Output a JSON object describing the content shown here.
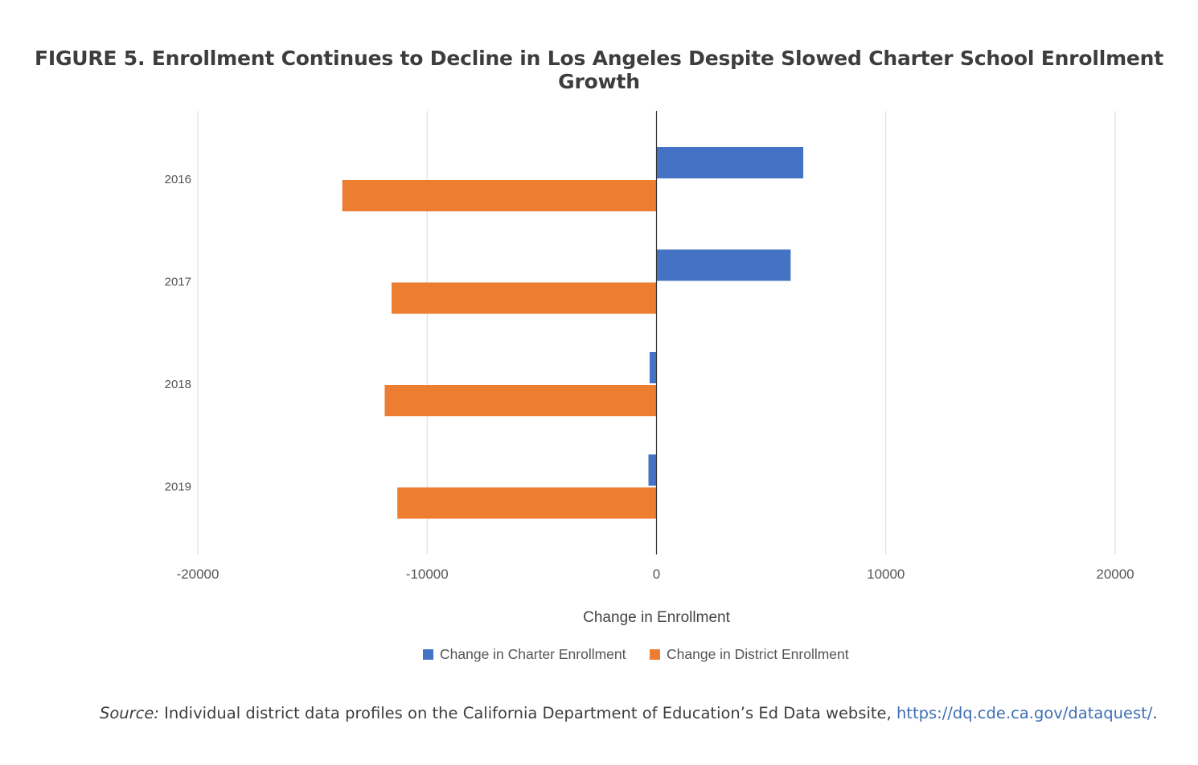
{
  "title": "FIGURE 5. Enrollment Continues to Decline in Los Angeles Despite Slowed Charter School Enrollment Growth",
  "chart_data": {
    "type": "bar",
    "orientation": "horizontal",
    "categories": [
      "2016",
      "2017",
      "2018",
      "2019"
    ],
    "series": [
      {
        "name": "Change in Charter Enrollment",
        "color": "#4472c4",
        "values": [
          6400,
          5850,
          -300,
          -350
        ]
      },
      {
        "name": "Change in District Enrollment",
        "color": "#ed7d31",
        "values": [
          -13700,
          -11550,
          -11850,
          -11300
        ]
      }
    ],
    "xlabel": "Change in Enrollment",
    "ylabel": "",
    "xlim": [
      -20000,
      20000
    ],
    "xticks": [
      "-20000",
      "-10000",
      "0",
      "10000",
      "20000"
    ],
    "grid": true,
    "legend_position": "bottom-center"
  },
  "source": {
    "label": "Source:",
    "text": " Individual district data profiles on the California Department of Education’s Ed Data website, ",
    "link": "https://dq.cde.ca.gov/dataquest/",
    "end": "."
  }
}
